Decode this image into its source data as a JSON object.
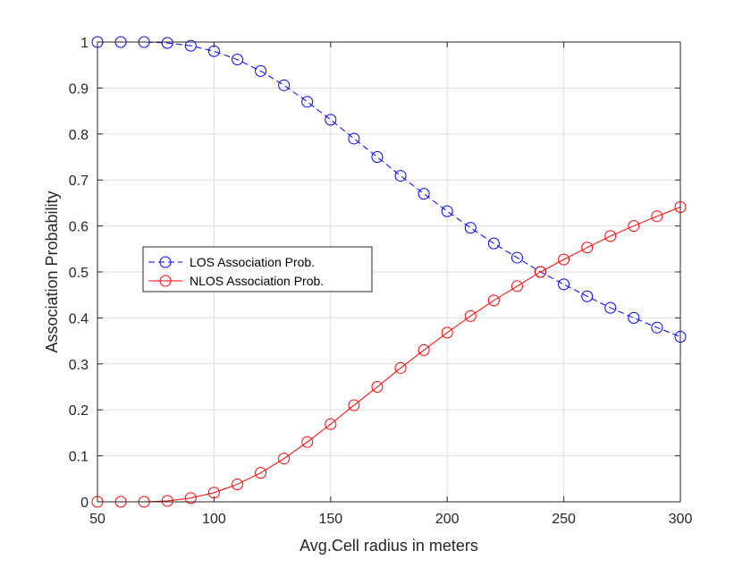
{
  "chart_data": {
    "type": "line",
    "title": "",
    "xlabel": "Avg.Cell radius in meters",
    "ylabel": "Association Probability",
    "xlim": [
      50,
      300
    ],
    "ylim": [
      0,
      1
    ],
    "xticks": [
      50,
      100,
      150,
      200,
      250,
      300
    ],
    "yticks": [
      0,
      0.1,
      0.2,
      0.3,
      0.4,
      0.5,
      0.6,
      0.7,
      0.8,
      0.9,
      1
    ],
    "grid": true,
    "legend_position": "center-left",
    "x": [
      50,
      60,
      70,
      80,
      90,
      100,
      110,
      120,
      130,
      140,
      150,
      160,
      170,
      180,
      190,
      200,
      210,
      220,
      230,
      240,
      250,
      260,
      270,
      280,
      290,
      300
    ],
    "series": [
      {
        "name": "LOS Association Prob.",
        "color": "#0000ff",
        "line_style": "dashed",
        "marker": "circle",
        "values": [
          1.0,
          1.0,
          1.0,
          0.998,
          0.992,
          0.98,
          0.962,
          0.937,
          0.906,
          0.87,
          0.831,
          0.79,
          0.75,
          0.709,
          0.67,
          0.632,
          0.596,
          0.562,
          0.531,
          0.5,
          0.473,
          0.447,
          0.422,
          0.4,
          0.379,
          0.359
        ]
      },
      {
        "name": "NLOS Association Prob.",
        "color": "#ff0000",
        "line_style": "solid",
        "marker": "circle",
        "values": [
          0.0,
          0.0,
          0.0,
          0.002,
          0.008,
          0.02,
          0.038,
          0.063,
          0.094,
          0.13,
          0.169,
          0.21,
          0.25,
          0.291,
          0.33,
          0.368,
          0.404,
          0.438,
          0.469,
          0.5,
          0.527,
          0.553,
          0.578,
          0.6,
          0.621,
          0.641
        ]
      }
    ]
  }
}
